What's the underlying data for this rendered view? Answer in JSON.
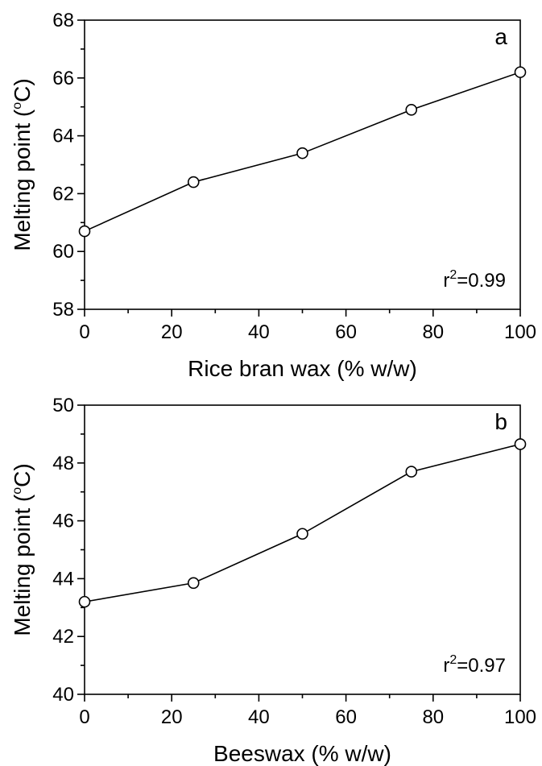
{
  "chart_data": [
    {
      "type": "line",
      "panel_label": "a",
      "xlabel": "Rice bran wax (% w/w)",
      "ylabel": {
        "main": "Melting point (",
        "sup": "o",
        "unit": "C)"
      },
      "x": [
        0,
        25,
        50,
        75,
        100
      ],
      "series": [
        {
          "values": [
            60.7,
            62.4,
            63.4,
            64.9,
            66.2
          ]
        }
      ],
      "xlim": [
        0,
        100
      ],
      "ylim": [
        58,
        68
      ],
      "xticks": [
        0,
        20,
        40,
        60,
        80,
        100
      ],
      "yticks": [
        58,
        60,
        62,
        64,
        66,
        68
      ],
      "annotation": {
        "base": "r",
        "sup": "2",
        "rest": "=0.99"
      },
      "marker": "open-circle",
      "grid": false,
      "legend": "none"
    },
    {
      "type": "line",
      "panel_label": "b",
      "xlabel": "Beeswax (% w/w)",
      "ylabel": {
        "main": "Melting point (",
        "sup": "o",
        "unit": "C)"
      },
      "x": [
        0,
        25,
        50,
        75,
        100
      ],
      "series": [
        {
          "values": [
            43.2,
            43.85,
            45.55,
            47.7,
            48.65
          ]
        }
      ],
      "xlim": [
        0,
        100
      ],
      "ylim": [
        40,
        50
      ],
      "xticks": [
        0,
        20,
        40,
        60,
        80,
        100
      ],
      "yticks": [
        40,
        42,
        44,
        46,
        48,
        50
      ],
      "annotation": {
        "base": "r",
        "sup": "2",
        "rest": "=0.97"
      },
      "marker": "open-circle",
      "grid": false,
      "legend": "none"
    }
  ]
}
